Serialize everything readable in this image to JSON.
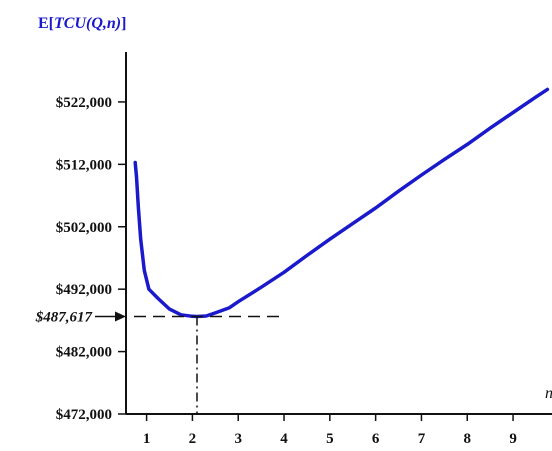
{
  "chart_data": {
    "type": "line",
    "title_prefix": "E[",
    "title_italic": "TCU(Q,n)",
    "title_suffix": "]",
    "xlabel": "n",
    "ylabel": "",
    "x_ticks": [
      "1",
      "2",
      "3",
      "4",
      "5",
      "6",
      "7",
      "8",
      "9"
    ],
    "y_ticks": [
      {
        "value": 472000,
        "label": "$472,000"
      },
      {
        "value": 482000,
        "label": "$482,000"
      },
      {
        "value": 492000,
        "label": "$492,000"
      },
      {
        "value": 502000,
        "label": "$502,000"
      },
      {
        "value": 512000,
        "label": "$512,000"
      },
      {
        "value": 522000,
        "label": "$522,000"
      }
    ],
    "xlim": [
      0.55,
      9.85
    ],
    "ylim": [
      472000,
      530000
    ],
    "series": [
      {
        "color": "#1a1acc",
        "points": [
          [
            0.75,
            512300
          ],
          [
            0.78,
            510000
          ],
          [
            0.82,
            505000
          ],
          [
            0.87,
            500000
          ],
          [
            0.95,
            495000
          ],
          [
            1.05,
            492000
          ],
          [
            1.25,
            490500
          ],
          [
            1.5,
            488800
          ],
          [
            1.75,
            487900
          ],
          [
            2.0,
            487650
          ],
          [
            2.1,
            487617
          ],
          [
            2.3,
            487700
          ],
          [
            2.5,
            488200
          ],
          [
            2.8,
            489000
          ],
          [
            3.0,
            490000
          ],
          [
            3.5,
            492300
          ],
          [
            4.0,
            494700
          ],
          [
            4.5,
            497400
          ],
          [
            5.0,
            500000
          ],
          [
            5.5,
            502500
          ],
          [
            6.0,
            505000
          ],
          [
            6.5,
            507700
          ],
          [
            7.0,
            510300
          ],
          [
            7.5,
            512800
          ],
          [
            8.0,
            515200
          ],
          [
            8.5,
            517800
          ],
          [
            9.0,
            520300
          ],
          [
            9.5,
            522800
          ],
          [
            9.75,
            524000
          ]
        ]
      }
    ],
    "annotation": {
      "label": "$487,617",
      "value": 487617,
      "x_at_min": 2.1,
      "dash_to_x": 4.0
    },
    "grid": false,
    "legend": "none"
  }
}
